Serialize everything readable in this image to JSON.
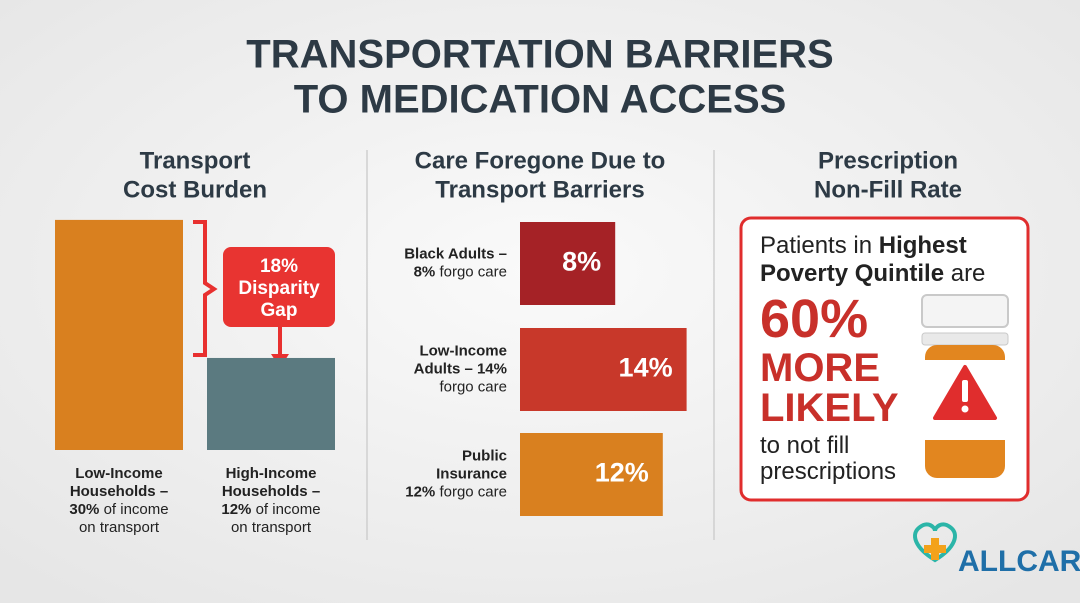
{
  "title": [
    "TRANSPORTATION BARRIERS",
    "TO MEDICATION ACCESS"
  ],
  "chart_data": [
    {
      "type": "bar",
      "title": [
        "Transport",
        "Cost Burden"
      ],
      "categories": [
        [
          [
            {
              "t": "Low-Income",
              "s": "b"
            }
          ],
          [
            {
              "t": "Households –",
              "s": "b"
            }
          ],
          [
            {
              "t": "30%",
              "s": "b"
            },
            {
              "t": " of income"
            }
          ],
          [
            {
              "t": "on transport"
            }
          ]
        ],
        [
          [
            {
              "t": "High-Income",
              "s": "b"
            }
          ],
          [
            {
              "t": "Households –",
              "s": "b"
            }
          ],
          [
            {
              "t": "12%",
              "s": "b"
            },
            {
              "t": " of income"
            }
          ],
          [
            {
              "t": "on transport"
            }
          ]
        ]
      ],
      "values": [
        30,
        12
      ],
      "colors": [
        "#d9801f",
        "#5b7a80"
      ],
      "annotation": [
        "18%",
        "Disparity",
        "Gap"
      ]
    },
    {
      "type": "hbar",
      "title": [
        "Care Foregone Due to",
        "Transport Barriers"
      ],
      "categories": [
        [
          [
            {
              "t": "Black Adults –",
              "s": "b"
            }
          ],
          [
            {
              "t": "8%",
              "s": "b"
            },
            {
              "t": " forgo care"
            }
          ]
        ],
        [
          [
            {
              "t": "Low-Income",
              "s": "b"
            }
          ],
          [
            {
              "t": "Adults – 14%",
              "s": "b"
            }
          ],
          [
            {
              "t": "forgo care"
            }
          ]
        ],
        [
          [
            {
              "t": "Public",
              "s": "b"
            }
          ],
          [
            {
              "t": "Insurance",
              "s": "b"
            }
          ],
          [
            {
              "t": "12%",
              "s": "b"
            },
            {
              "t": " forgo care"
            }
          ]
        ]
      ],
      "values": [
        8,
        14,
        12
      ],
      "value_labels": [
        "8%",
        "14%",
        "12%"
      ],
      "colors": [
        "#a52226",
        "#c8382a",
        "#d9801f"
      ]
    }
  ],
  "panel3": {
    "title": [
      "Prescription",
      "Non-Fill Rate"
    ],
    "lines": [
      [
        {
          "t": "Patients in "
        },
        {
          "t": "Highest",
          "s": "b"
        }
      ],
      [
        {
          "t": "Poverty Quintile",
          "s": "b"
        },
        {
          "t": " are"
        }
      ],
      [
        {
          "t": "60%",
          "s": "big"
        }
      ],
      [
        {
          "t": "MORE",
          "s": "mid"
        }
      ],
      [
        {
          "t": "LIKELY",
          "s": "mid"
        }
      ],
      [
        {
          "t": "to not fill"
        }
      ],
      [
        {
          "t": "prescriptions"
        }
      ]
    ]
  },
  "logo": "ALLCARE"
}
